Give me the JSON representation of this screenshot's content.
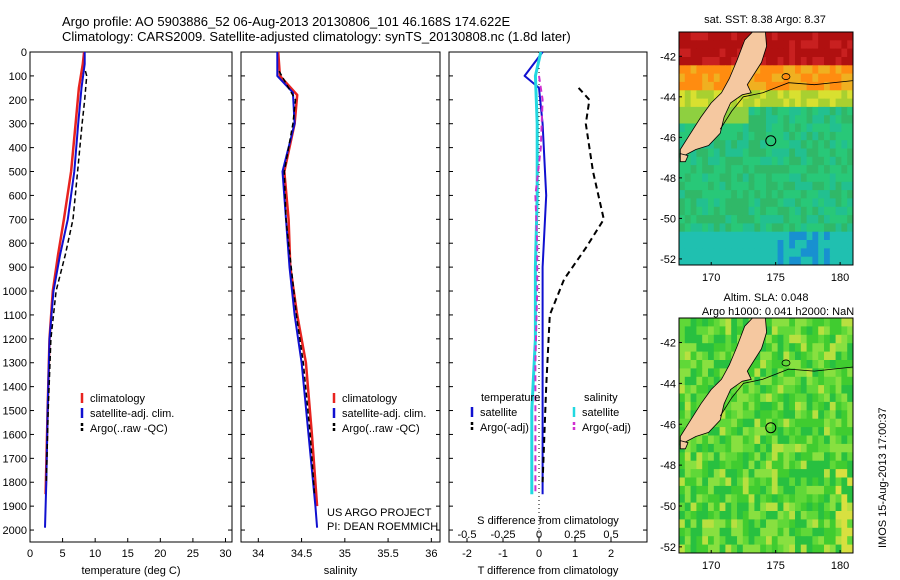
{
  "header": {
    "line1": "Argo profile: AO 5903886_52 06-Aug-2013 20130806_101 46.168S 174.622E",
    "line2": "Climatology: CARS2009. Satellite-adjusted climatology: synTS_20130808.nc (1.8d later)"
  },
  "side_stamp": "IMOS 15-Aug-2013 17:00:37",
  "colors": {
    "climatology": "#e8231f",
    "satellite": "#1010d0",
    "argo": "#000000",
    "cyan": "#22d8e0",
    "magenta": "#d030d0",
    "land": "#f5c8a0"
  },
  "chart_data": [
    {
      "type": "line",
      "panel": "temperature",
      "xlabel": "temperature (deg C)",
      "xlim": [
        0,
        31
      ],
      "xticks": [
        "0",
        "5",
        "10",
        "15",
        "20",
        "25",
        "30"
      ],
      "ylim": [
        0,
        2050
      ],
      "yticks": [
        "0",
        "100",
        "200",
        "300",
        "400",
        "500",
        "600",
        "700",
        "800",
        "900",
        "1000",
        "1100",
        "1200",
        "1300",
        "1400",
        "1500",
        "1600",
        "1700",
        "1800",
        "1900",
        "2000"
      ],
      "legend": [
        "climatology",
        "satellite-adj. clim.",
        "Argo(..raw -QC)"
      ],
      "series": [
        {
          "name": "climatology",
          "style": "solid",
          "points": [
            [
              8.3,
              0
            ],
            [
              8.1,
              50
            ],
            [
              7.5,
              150
            ],
            [
              7.0,
              300
            ],
            [
              6.3,
              500
            ],
            [
              5.2,
              700
            ],
            [
              4.3,
              850
            ],
            [
              3.5,
              1000
            ],
            [
              3.0,
              1200
            ],
            [
              2.7,
              1500
            ],
            [
              2.4,
              1850
            ]
          ]
        },
        {
          "name": "satellite-adj. clim.",
          "style": "solid",
          "points": [
            [
              8.4,
              0
            ],
            [
              8.4,
              50
            ],
            [
              7.9,
              150
            ],
            [
              7.4,
              300
            ],
            [
              6.8,
              500
            ],
            [
              5.8,
              700
            ],
            [
              4.6,
              850
            ],
            [
              3.6,
              1000
            ],
            [
              3.0,
              1200
            ],
            [
              2.7,
              1500
            ],
            [
              2.5,
              1800
            ],
            [
              2.3,
              1990
            ]
          ]
        },
        {
          "name": "Argo(..raw -QC)",
          "style": "dashed",
          "points": [
            [
              8.5,
              80
            ],
            [
              8.7,
              100
            ],
            [
              8.4,
              200
            ],
            [
              8.0,
              300
            ],
            [
              7.3,
              500
            ],
            [
              6.6,
              700
            ],
            [
              5.4,
              850
            ],
            [
              4.0,
              1000
            ],
            [
              3.2,
              1200
            ],
            [
              2.8,
              1500
            ],
            [
              2.5,
              1800
            ]
          ]
        }
      ]
    },
    {
      "type": "line",
      "panel": "salinity",
      "xlabel": "salinity",
      "xlim": [
        33.8,
        36.1
      ],
      "xticks": [
        "34",
        "34.5",
        "35",
        "35.5",
        "36"
      ],
      "ylim": [
        0,
        2050
      ],
      "legend": [
        "climatology",
        "satellite-adj. clim.",
        "Argo(..raw -QC)"
      ],
      "annotation": [
        "US ARGO PROJECT",
        "PI: DEAN ROEMMICH"
      ],
      "series": [
        {
          "name": "climatology",
          "style": "solid",
          "points": [
            [
              34.23,
              0
            ],
            [
              34.25,
              100
            ],
            [
              34.45,
              180
            ],
            [
              34.42,
              300
            ],
            [
              34.3,
              500
            ],
            [
              34.35,
              700
            ],
            [
              34.37,
              900
            ],
            [
              34.45,
              1100
            ],
            [
              34.55,
              1300
            ],
            [
              34.62,
              1600
            ],
            [
              34.68,
              1900
            ]
          ]
        },
        {
          "name": "satellite-adj. clim.",
          "style": "solid",
          "points": [
            [
              34.22,
              0
            ],
            [
              34.22,
              100
            ],
            [
              34.4,
              170
            ],
            [
              34.42,
              300
            ],
            [
              34.28,
              500
            ],
            [
              34.32,
              700
            ],
            [
              34.36,
              900
            ],
            [
              34.42,
              1100
            ],
            [
              34.5,
              1300
            ],
            [
              34.58,
              1600
            ],
            [
              34.66,
              1900
            ],
            [
              34.68,
              1990
            ]
          ]
        },
        {
          "name": "Argo(..raw -QC)",
          "style": "dashed",
          "points": [
            [
              34.24,
              80
            ],
            [
              34.35,
              150
            ],
            [
              34.43,
              200
            ],
            [
              34.4,
              300
            ],
            [
              34.3,
              500
            ],
            [
              34.32,
              700
            ],
            [
              34.38,
              900
            ],
            [
              34.44,
              1100
            ],
            [
              34.52,
              1300
            ],
            [
              34.6,
              1600
            ],
            [
              34.65,
              1850
            ]
          ]
        }
      ]
    },
    {
      "type": "line",
      "panel": "difference",
      "xlabel_top": "S difference from climatology",
      "xlabel": "T difference from climatology",
      "xlim": [
        -2.5,
        3.0
      ],
      "xticks_bottom": [
        "-2",
        "-1",
        "0",
        "1",
        "2"
      ],
      "xticks_top": [
        "-0.5",
        "-0.25",
        "0",
        "0.25",
        "0.5"
      ],
      "ylim": [
        0,
        2050
      ],
      "legend_temperature": {
        "header": "temperature",
        "items": [
          "satellite",
          "Argo(-adj)"
        ]
      },
      "legend_salinity": {
        "header": "salinity",
        "items": [
          "satellite",
          "Argo(-adj)"
        ]
      },
      "series": [
        {
          "name": "temperature satellite",
          "style": "solid",
          "points": [
            [
              0.1,
              0
            ],
            [
              -0.4,
              100
            ],
            [
              0.0,
              150
            ],
            [
              0.1,
              300
            ],
            [
              0.2,
              600
            ],
            [
              0.1,
              900
            ],
            [
              0.1,
              1200
            ],
            [
              0.1,
              1500
            ],
            [
              0.1,
              1850
            ]
          ]
        },
        {
          "name": "temperature Argo(-adj)",
          "style": "dashed",
          "points": [
            [
              1.1,
              150
            ],
            [
              1.4,
              200
            ],
            [
              1.3,
              300
            ],
            [
              1.5,
              500
            ],
            [
              1.8,
              700
            ],
            [
              1.3,
              820
            ],
            [
              0.7,
              950
            ],
            [
              0.3,
              1100
            ],
            [
              0.2,
              1400
            ],
            [
              0.1,
              1800
            ]
          ]
        },
        {
          "name": "salinity satellite",
          "style": "solid",
          "points": [
            [
              0.05,
              0
            ],
            [
              -0.1,
              100
            ],
            [
              -0.05,
              300
            ],
            [
              -0.05,
              600
            ],
            [
              -0.1,
              900
            ],
            [
              -0.1,
              1200
            ],
            [
              -0.2,
              1500
            ],
            [
              -0.2,
              1850
            ]
          ]
        },
        {
          "name": "salinity Argo(-adj)",
          "style": "dashed",
          "points": [
            [
              0.0,
              100
            ],
            [
              0.1,
              200
            ],
            [
              0.05,
              400
            ],
            [
              -0.1,
              600
            ],
            [
              -0.05,
              800
            ],
            [
              -0.05,
              1000
            ],
            [
              -0.1,
              1300
            ],
            [
              -0.1,
              1600
            ],
            [
              -0.1,
              1850
            ]
          ]
        }
      ]
    },
    {
      "type": "heatmap",
      "panel": "sst_map",
      "title": "sat. SST: 8.38 Argo: 8.37",
      "xticks": [
        "170",
        "175",
        "180"
      ],
      "yticks": [
        "-42",
        "-44",
        "-46",
        "-48",
        "-50",
        "-52"
      ],
      "xlim": [
        167.5,
        181
      ],
      "ylim": [
        -52.3,
        -40.8
      ],
      "argo_position": [
        174.622,
        -46.168
      ]
    },
    {
      "type": "heatmap",
      "panel": "sla_map",
      "title_line1": "Altim. SLA: 0.048",
      "title_line2": "Argo h1000: 0.041 h2000: NaN",
      "xticks": [
        "170",
        "175",
        "180"
      ],
      "yticks": [
        "-42",
        "-44",
        "-46",
        "-48",
        "-50",
        "-52"
      ],
      "xlim": [
        167.5,
        181
      ],
      "ylim": [
        -52.3,
        -40.8
      ],
      "argo_position": [
        174.622,
        -46.168
      ]
    }
  ]
}
